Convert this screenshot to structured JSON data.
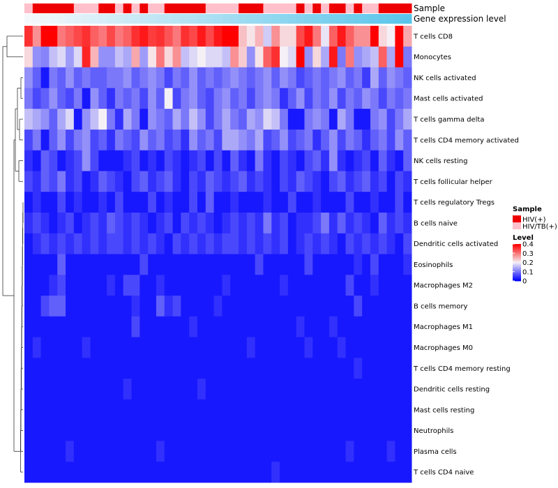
{
  "chart_data": {
    "type": "heatmap",
    "title": "",
    "rows": [
      "T cells CD8",
      "Monocytes",
      "NK cells activated",
      "Mast cells activated",
      "T cells gamma delta",
      "T cells CD4 memory activated",
      "NK cells resting",
      "T cells follicular helper",
      "T cells regulatory  Tregs",
      "B cells naive",
      "Dendritic cells activated",
      "Eosinophils",
      "Macrophages M2",
      "B cells memory",
      "Macrophages M1",
      "Macrophages M0",
      "T cells CD4 memory resting",
      "Dendritic cells resting",
      "Mast cells resting",
      "Neutrophils",
      "Plasma cells",
      "T cells CD4 naive"
    ],
    "annotations": [
      {
        "label": "Sample",
        "type": "categorical"
      },
      {
        "label": "Gene expression level",
        "type": "continuous"
      }
    ],
    "sample_groups": [
      "HIV/TB(+)",
      "HIV(+)",
      "HIV(+)",
      "HIV(+)",
      "HIV(+)",
      "HIV(+)",
      "HIV/TB(+)",
      "HIV/TB(+)",
      "HIV/TB(+)",
      "HIV(+)",
      "HIV(+)",
      "HIV/TB(+)",
      "HIV(+)",
      "HIV/TB(+)",
      "HIV(+)",
      "HIV/TB(+)",
      "HIV/TB(+)",
      "HIV(+)",
      "HIV(+)",
      "HIV(+)",
      "HIV(+)",
      "HIV(+)",
      "HIV/TB(+)",
      "HIV/TB(+)",
      "HIV/TB(+)",
      "HIV/TB(+)",
      "HIV(+)",
      "HIV(+)",
      "HIV(+)",
      "HIV/TB(+)",
      "HIV/TB(+)",
      "HIV/TB(+)",
      "HIV/TB(+)",
      "HIV(+)",
      "HIV/TB(+)",
      "HIV(+)",
      "HIV/TB(+)",
      "HIV(+)",
      "HIV(+)",
      "HIV/TB(+)",
      "HIV(+)",
      "HIV/TB(+)",
      "HIV/TB(+)",
      "HIV(+)",
      "HIV(+)",
      "HIV(+)",
      "HIV(+)"
    ],
    "expression_gradient": {
      "low_color": "#f5f8fb",
      "high_color": "#5ac5ea"
    },
    "legend": {
      "sample_title": "Sample",
      "sample_items": [
        {
          "label": "HIV(+)",
          "color": "#ee0000"
        },
        {
          "label": "HIV/TB(+)",
          "color": "#ffc0cb"
        }
      ],
      "level_title": "Level",
      "level_ticks": [
        0,
        0.1,
        0.2,
        0.3,
        0.4
      ],
      "level_tick_labels": [
        "0",
        "0.1",
        "0.2",
        "0.3",
        "0.4"
      ],
      "position": "right"
    },
    "color_scale": {
      "min": 0,
      "mid": 0.2,
      "max": 0.4,
      "low": "#0000ff",
      "mid_color": "#f5f0f5",
      "high": "#ff0000"
    },
    "values": [
      [
        0.36,
        0.28,
        0.4,
        0.4,
        0.3,
        0.32,
        0.34,
        0.36,
        0.32,
        0.3,
        0.34,
        0.3,
        0.32,
        0.36,
        0.38,
        0.35,
        0.36,
        0.33,
        0.3,
        0.36,
        0.34,
        0.38,
        0.34,
        0.38,
        0.4,
        0.4,
        0.24,
        0.21,
        0.25,
        0.17,
        0.28,
        0.22,
        0.22,
        0.34,
        0.38,
        0.3,
        0.19,
        0.32,
        0.38,
        0.32,
        0.28,
        0.28,
        0.4,
        0.22,
        0.2,
        0.4,
        0.26
      ],
      [
        0.22,
        0.12,
        0.11,
        0.16,
        0.18,
        0.13,
        0.18,
        0.37,
        0.25,
        0.12,
        0.12,
        0.16,
        0.14,
        0.26,
        0.13,
        0.21,
        0.3,
        0.22,
        0.28,
        0.16,
        0.18,
        0.2,
        0.18,
        0.18,
        0.16,
        0.28,
        0.23,
        0.12,
        0.21,
        0.32,
        0.36,
        0.2,
        0.18,
        0.4,
        0.12,
        0.22,
        0.14,
        0.38,
        0.1,
        0.3,
        0.12,
        0.14,
        0.16,
        0.32,
        0.14,
        0.4,
        0.1
      ],
      [
        0.12,
        0.08,
        0.02,
        0.1,
        0.08,
        0.12,
        0.08,
        0.1,
        0.08,
        0.08,
        0.1,
        0.1,
        0.12,
        0.08,
        0.1,
        0.12,
        0.1,
        0.06,
        0.1,
        0.08,
        0.12,
        0.08,
        0.1,
        0.08,
        0.1,
        0.12,
        0.1,
        0.08,
        0.1,
        0.12,
        0.08,
        0.12,
        0.1,
        0.06,
        0.08,
        0.1,
        0.08,
        0.1,
        0.12,
        0.08,
        0.1,
        0.05,
        0.14,
        0.08,
        0.12,
        0.1,
        0.08
      ],
      [
        0.1,
        0.06,
        0.08,
        0.12,
        0.08,
        0.06,
        0.1,
        0.02,
        0.12,
        0.08,
        0.04,
        0.1,
        0.08,
        0.1,
        0.06,
        0.12,
        0.08,
        0.2,
        0.06,
        0.1,
        0.12,
        0.08,
        0.06,
        0.1,
        0.12,
        0.08,
        0.1,
        0.06,
        0.1,
        0.12,
        0.1,
        0.04,
        0.08,
        0.12,
        0.06,
        0.1,
        0.08,
        0.12,
        0.06,
        0.1,
        0.08,
        0.12,
        0.1,
        0.06,
        0.1,
        0.08,
        0.1
      ],
      [
        0.16,
        0.14,
        0.12,
        0.08,
        0.14,
        0.18,
        0.02,
        0.12,
        0.16,
        0.2,
        0.1,
        0.04,
        0.14,
        0.1,
        0.02,
        0.12,
        0.1,
        0.08,
        0.14,
        0.1,
        0.16,
        0.12,
        0.06,
        0.1,
        0.14,
        0.1,
        0.08,
        0.14,
        0.12,
        0.18,
        0.16,
        0.1,
        0.02,
        0.02,
        0.1,
        0.12,
        0.1,
        0.02,
        0.14,
        0.1,
        0.02,
        0.02,
        0.1,
        0.12,
        0.06,
        0.1,
        0.14
      ],
      [
        0.06,
        0.1,
        0.02,
        0.08,
        0.12,
        0.06,
        0.1,
        0.12,
        0.06,
        0.08,
        0.04,
        0.1,
        0.08,
        0.06,
        0.12,
        0.08,
        0.1,
        0.06,
        0.08,
        0.04,
        0.12,
        0.08,
        0.1,
        0.06,
        0.14,
        0.14,
        0.12,
        0.1,
        0.14,
        0.06,
        0.08,
        0.12,
        0.06,
        0.08,
        0.1,
        0.04,
        0.08,
        0.12,
        0.06,
        0.1,
        0.08,
        0.04,
        0.08,
        0.1,
        0.06,
        0.12,
        0.08
      ],
      [
        0.04,
        0.02,
        0.08,
        0.06,
        0.02,
        0.04,
        0.06,
        0.12,
        0.06,
        0.02,
        0.02,
        0.02,
        0.04,
        0.06,
        0.02,
        0.04,
        0.02,
        0.06,
        0.04,
        0.02,
        0.04,
        0.06,
        0.02,
        0.06,
        0.02,
        0.08,
        0.04,
        0.02,
        0.1,
        0.04,
        0.02,
        0.06,
        0.04,
        0.02,
        0.06,
        0.08,
        0.04,
        0.12,
        0.04,
        0.02,
        0.04,
        0.06,
        0.02,
        0.08,
        0.04,
        0.02,
        0.08
      ],
      [
        0.06,
        0.04,
        0.08,
        0.06,
        0.1,
        0.04,
        0.06,
        0.02,
        0.04,
        0.08,
        0.06,
        0.04,
        0.02,
        0.06,
        0.08,
        0.04,
        0.06,
        0.08,
        0.04,
        0.02,
        0.06,
        0.04,
        0.08,
        0.06,
        0.04,
        0.06,
        0.08,
        0.04,
        0.06,
        0.04,
        0.02,
        0.06,
        0.04,
        0.08,
        0.06,
        0.04,
        0.02,
        0.06,
        0.08,
        0.04,
        0.06,
        0.08,
        0.04,
        0.06,
        0.02,
        0.06,
        0.04
      ],
      [
        0.02,
        0.04,
        0.02,
        0.02,
        0.06,
        0.02,
        0.04,
        0.02,
        0.02,
        0.04,
        0.02,
        0.06,
        0.02,
        0.02,
        0.02,
        0.06,
        0.02,
        0.04,
        0.02,
        0.02,
        0.06,
        0.02,
        0.08,
        0.02,
        0.02,
        0.04,
        0.02,
        0.02,
        0.02,
        0.04,
        0.02,
        0.02,
        0.06,
        0.02,
        0.02,
        0.04,
        0.02,
        0.02,
        0.02,
        0.06,
        0.02,
        0.02,
        0.04,
        0.02,
        0.02,
        0.06,
        0.02
      ],
      [
        0.04,
        0.06,
        0.04,
        0.02,
        0.04,
        0.06,
        0.02,
        0.04,
        0.06,
        0.04,
        0.08,
        0.06,
        0.04,
        0.06,
        0.04,
        0.02,
        0.04,
        0.06,
        0.02,
        0.06,
        0.04,
        0.06,
        0.04,
        0.02,
        0.04,
        0.06,
        0.04,
        0.06,
        0.04,
        0.1,
        0.04,
        0.06,
        0.02,
        0.04,
        0.04,
        0.06,
        0.1,
        0.04,
        0.08,
        0.04,
        0.06,
        0.04,
        0.02,
        0.08,
        0.04,
        0.06,
        0.04
      ],
      [
        0.02,
        0.04,
        0.06,
        0.04,
        0.06,
        0.04,
        0.06,
        0.04,
        0.06,
        0.04,
        0.06,
        0.06,
        0.04,
        0.06,
        0.04,
        0.06,
        0.04,
        0.02,
        0.06,
        0.04,
        0.06,
        0.04,
        0.06,
        0.04,
        0.06,
        0.06,
        0.04,
        0.06,
        0.04,
        0.06,
        0.04,
        0.06,
        0.02,
        0.04,
        0.06,
        0.04,
        0.06,
        0.04,
        0.02,
        0.06,
        0.04,
        0.06,
        0.04,
        0.06,
        0.04,
        0.02,
        0.06
      ],
      [
        0.02,
        0.02,
        0.02,
        0.02,
        0.08,
        0.02,
        0.02,
        0.02,
        0.02,
        0.02,
        0.02,
        0.02,
        0.02,
        0.02,
        0.06,
        0.02,
        0.02,
        0.02,
        0.02,
        0.02,
        0.02,
        0.02,
        0.02,
        0.02,
        0.02,
        0.02,
        0.02,
        0.02,
        0.06,
        0.02,
        0.02,
        0.02,
        0.02,
        0.02,
        0.06,
        0.02,
        0.02,
        0.02,
        0.02,
        0.02,
        0.04,
        0.02,
        0.06,
        0.02,
        0.02,
        0.02,
        0.04
      ],
      [
        0.02,
        0.02,
        0.02,
        0.04,
        0.06,
        0.02,
        0.02,
        0.02,
        0.02,
        0.02,
        0.04,
        0.02,
        0.06,
        0.06,
        0.02,
        0.02,
        0.04,
        0.02,
        0.02,
        0.02,
        0.02,
        0.02,
        0.02,
        0.02,
        0.04,
        0.02,
        0.02,
        0.02,
        0.02,
        0.02,
        0.02,
        0.04,
        0.02,
        0.02,
        0.02,
        0.02,
        0.02,
        0.02,
        0.02,
        0.06,
        0.02,
        0.02,
        0.04,
        0.02,
        0.02,
        0.02,
        0.02
      ],
      [
        0.02,
        0.02,
        0.06,
        0.08,
        0.08,
        0.02,
        0.02,
        0.02,
        0.02,
        0.02,
        0.02,
        0.02,
        0.02,
        0.04,
        0.02,
        0.02,
        0.08,
        0.04,
        0.06,
        0.02,
        0.02,
        0.02,
        0.02,
        0.04,
        0.02,
        0.02,
        0.02,
        0.02,
        0.02,
        0.02,
        0.02,
        0.02,
        0.02,
        0.02,
        0.02,
        0.02,
        0.02,
        0.02,
        0.02,
        0.02,
        0.06,
        0.02,
        0.02,
        0.02,
        0.02,
        0.02,
        0.02
      ],
      [
        0.02,
        0.02,
        0.02,
        0.02,
        0.02,
        0.02,
        0.02,
        0.02,
        0.02,
        0.02,
        0.02,
        0.02,
        0.02,
        0.06,
        0.02,
        0.02,
        0.02,
        0.02,
        0.02,
        0.02,
        0.04,
        0.02,
        0.02,
        0.02,
        0.02,
        0.02,
        0.02,
        0.02,
        0.02,
        0.02,
        0.02,
        0.02,
        0.02,
        0.04,
        0.02,
        0.02,
        0.02,
        0.04,
        0.02,
        0.02,
        0.02,
        0.02,
        0.02,
        0.02,
        0.02,
        0.02,
        0.02
      ],
      [
        0.02,
        0.04,
        0.02,
        0.02,
        0.02,
        0.02,
        0.02,
        0.04,
        0.02,
        0.02,
        0.02,
        0.02,
        0.02,
        0.02,
        0.02,
        0.02,
        0.02,
        0.02,
        0.02,
        0.02,
        0.02,
        0.02,
        0.02,
        0.02,
        0.02,
        0.02,
        0.02,
        0.04,
        0.02,
        0.02,
        0.02,
        0.02,
        0.02,
        0.02,
        0.04,
        0.02,
        0.02,
        0.02,
        0.04,
        0.02,
        0.02,
        0.02,
        0.02,
        0.02,
        0.02,
        0.02,
        0.02
      ],
      [
        0.02,
        0.02,
        0.02,
        0.02,
        0.02,
        0.02,
        0.02,
        0.02,
        0.02,
        0.02,
        0.02,
        0.02,
        0.02,
        0.02,
        0.02,
        0.02,
        0.02,
        0.02,
        0.02,
        0.02,
        0.02,
        0.02,
        0.02,
        0.02,
        0.02,
        0.02,
        0.02,
        0.02,
        0.02,
        0.02,
        0.02,
        0.02,
        0.02,
        0.02,
        0.02,
        0.02,
        0.02,
        0.02,
        0.02,
        0.02,
        0.04,
        0.02,
        0.02,
        0.02,
        0.02,
        0.02,
        0.02
      ],
      [
        0.02,
        0.02,
        0.02,
        0.02,
        0.02,
        0.02,
        0.02,
        0.02,
        0.02,
        0.02,
        0.02,
        0.02,
        0.04,
        0.02,
        0.02,
        0.02,
        0.02,
        0.02,
        0.02,
        0.02,
        0.02,
        0.04,
        0.02,
        0.02,
        0.02,
        0.02,
        0.02,
        0.02,
        0.02,
        0.02,
        0.02,
        0.02,
        0.02,
        0.02,
        0.02,
        0.02,
        0.02,
        0.02,
        0.02,
        0.02,
        0.02,
        0.02,
        0.02,
        0.02,
        0.02,
        0.02,
        0.02
      ],
      [
        0.02,
        0.02,
        0.02,
        0.02,
        0.02,
        0.02,
        0.02,
        0.02,
        0.02,
        0.02,
        0.02,
        0.02,
        0.02,
        0.02,
        0.02,
        0.02,
        0.02,
        0.02,
        0.02,
        0.02,
        0.02,
        0.02,
        0.02,
        0.02,
        0.02,
        0.02,
        0.02,
        0.02,
        0.02,
        0.02,
        0.02,
        0.02,
        0.02,
        0.02,
        0.02,
        0.02,
        0.02,
        0.02,
        0.02,
        0.02,
        0.02,
        0.02,
        0.02,
        0.02,
        0.02,
        0.02,
        0.02
      ],
      [
        0.02,
        0.02,
        0.02,
        0.02,
        0.02,
        0.02,
        0.02,
        0.02,
        0.02,
        0.02,
        0.02,
        0.02,
        0.02,
        0.02,
        0.02,
        0.02,
        0.02,
        0.02,
        0.02,
        0.02,
        0.02,
        0.02,
        0.02,
        0.02,
        0.02,
        0.02,
        0.02,
        0.02,
        0.02,
        0.02,
        0.02,
        0.02,
        0.02,
        0.02,
        0.02,
        0.02,
        0.02,
        0.02,
        0.02,
        0.02,
        0.02,
        0.02,
        0.02,
        0.02,
        0.02,
        0.02,
        0.02
      ],
      [
        0.02,
        0.02,
        0.02,
        0.02,
        0.02,
        0.04,
        0.02,
        0.02,
        0.02,
        0.02,
        0.02,
        0.02,
        0.02,
        0.02,
        0.02,
        0.02,
        0.04,
        0.02,
        0.02,
        0.02,
        0.02,
        0.02,
        0.02,
        0.02,
        0.02,
        0.02,
        0.02,
        0.02,
        0.02,
        0.02,
        0.02,
        0.02,
        0.02,
        0.02,
        0.02,
        0.02,
        0.02,
        0.02,
        0.02,
        0.04,
        0.02,
        0.02,
        0.02,
        0.02,
        0.04,
        0.02,
        0.02
      ],
      [
        0.02,
        0.02,
        0.02,
        0.02,
        0.02,
        0.02,
        0.02,
        0.02,
        0.02,
        0.02,
        0.02,
        0.02,
        0.02,
        0.02,
        0.02,
        0.02,
        0.02,
        0.02,
        0.02,
        0.02,
        0.02,
        0.02,
        0.02,
        0.02,
        0.02,
        0.02,
        0.02,
        0.02,
        0.02,
        0.02,
        0.04,
        0.02,
        0.02,
        0.02,
        0.02,
        0.02,
        0.02,
        0.02,
        0.02,
        0.02,
        0.02,
        0.02,
        0.02,
        0.02,
        0.02,
        0.02,
        0.02
      ]
    ]
  }
}
